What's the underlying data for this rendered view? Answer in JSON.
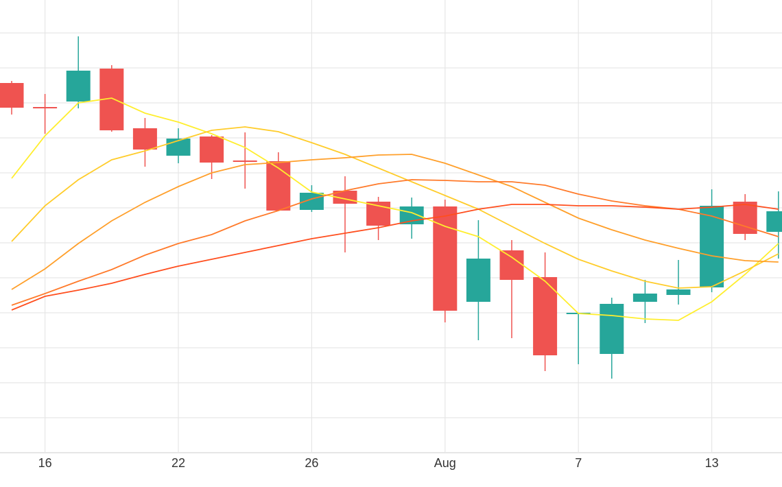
{
  "chart_data": {
    "type": "candlestick",
    "categories": [
      null,
      "16",
      null,
      null,
      null,
      "22",
      null,
      null,
      null,
      "26",
      null,
      null,
      null,
      "Aug",
      null,
      null,
      null,
      "7",
      null,
      null,
      null,
      "13",
      null,
      null
    ],
    "open": [
      539,
      504,
      512,
      560,
      473,
      433,
      461,
      426,
      425,
      354,
      382,
      366,
      333,
      359,
      220,
      295,
      256,
      202,
      144,
      220,
      230,
      241,
      366,
      322
    ],
    "high": [
      542,
      523,
      607,
      565,
      488,
      473,
      463,
      467,
      438,
      390,
      403,
      373,
      372,
      369,
      339,
      310,
      292,
      204,
      226,
      252,
      281,
      384,
      377,
      381
    ],
    "low": [
      493,
      465,
      502,
      468,
      417,
      422,
      399,
      385,
      353,
      351,
      292,
      310,
      312,
      190,
      164,
      167,
      119,
      129,
      108,
      189,
      216,
      234,
      310,
      283
    ],
    "close": [
      503,
      502,
      557,
      470,
      442,
      458,
      423,
      424,
      353,
      379,
      363,
      331,
      359,
      207,
      283,
      252,
      142,
      204,
      217,
      232,
      238,
      360,
      319,
      352
    ],
    "up_color": "#26a69a",
    "down_color": "#ef5350",
    "lines": [
      {
        "color": "#ffee2e",
        "values": [
          400,
          462,
          510,
          517,
          495,
          482,
          465,
          445,
          415,
          380,
          370,
          360,
          350,
          330,
          315,
          285,
          250,
          203,
          200,
          195,
          193,
          220,
          260,
          305
        ]
      },
      {
        "color": "#ffcc2a",
        "values": [
          308,
          360,
          398,
          427,
          440,
          455,
          470,
          475,
          468,
          452,
          435,
          415,
          395,
          375,
          355,
          330,
          305,
          282,
          265,
          250,
          240,
          242,
          265,
          290
        ]
      },
      {
        "color": "#ff9f2a",
        "values": [
          238,
          268,
          305,
          338,
          365,
          388,
          408,
          420,
          423,
          427,
          430,
          434,
          435,
          422,
          405,
          388,
          365,
          342,
          325,
          310,
          298,
          287,
          280,
          278
        ]
      },
      {
        "color": "#ff7a2a",
        "values": [
          215,
          232,
          250,
          267,
          288,
          305,
          318,
          338,
          353,
          370,
          382,
          392,
          398,
          397,
          395,
          395,
          390,
          377,
          367,
          360,
          355,
          345,
          330,
          315
        ]
      },
      {
        "color": "#ff4e1e",
        "values": [
          208,
          228,
          237,
          247,
          260,
          272,
          282,
          292,
          302,
          312,
          320,
          328,
          338,
          345,
          355,
          362,
          362,
          360,
          360,
          358,
          355,
          358,
          362,
          355
        ]
      }
    ],
    "ylim": [
      0,
      660
    ],
    "yticks": [
      0,
      51,
      102,
      153,
      204,
      255,
      306,
      357,
      408,
      459,
      510,
      561,
      612
    ],
    "grid": true
  }
}
